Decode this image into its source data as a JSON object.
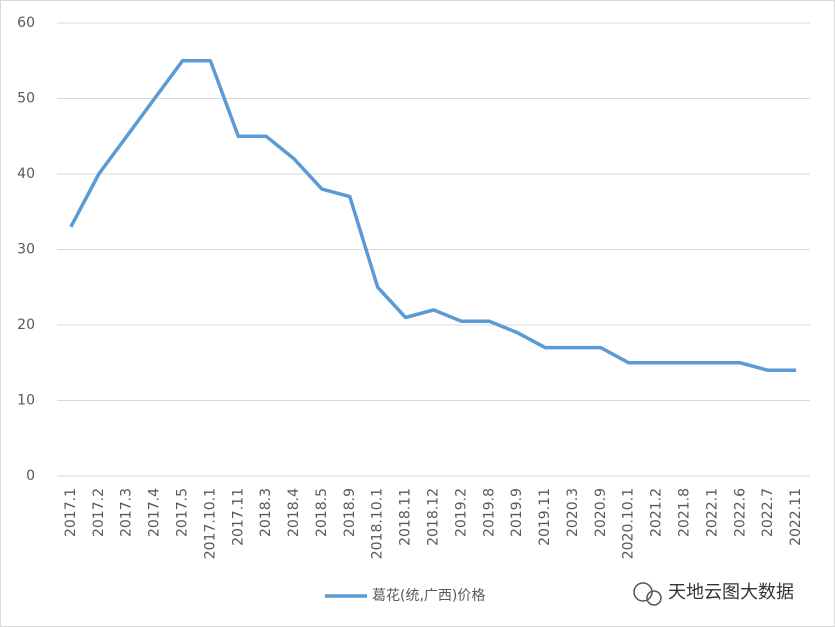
{
  "chart_data": {
    "type": "line",
    "categories": [
      "2017.1",
      "2017.2",
      "2017.3",
      "2017.4",
      "2017.5",
      "2017.10.1",
      "2017.11",
      "2018.3",
      "2018.4",
      "2018.5",
      "2018.9",
      "2018.10.1",
      "2018.11",
      "2018.12",
      "2019.2",
      "2019.8",
      "2019.9",
      "2019.11",
      "2020.3",
      "2020.9",
      "2020.10.1",
      "2021.2",
      "2021.8",
      "2022.1",
      "2022.6",
      "2022.7",
      "2022.11"
    ],
    "series": [
      {
        "name": "葛花(统,广西)价格",
        "color": "#5b9bd5",
        "values": [
          33,
          40,
          45,
          50,
          55,
          55,
          45,
          45,
          42,
          38,
          37,
          25,
          21,
          22,
          20.5,
          20.5,
          19,
          17,
          17,
          17,
          15,
          15,
          15,
          15,
          15,
          14,
          14
        ]
      }
    ],
    "ylim": [
      0,
      60
    ],
    "yticks": [
      0,
      10,
      20,
      30,
      40,
      50,
      60
    ],
    "grid": true,
    "legend": "bottom",
    "watermark": "天地云图大数据"
  }
}
